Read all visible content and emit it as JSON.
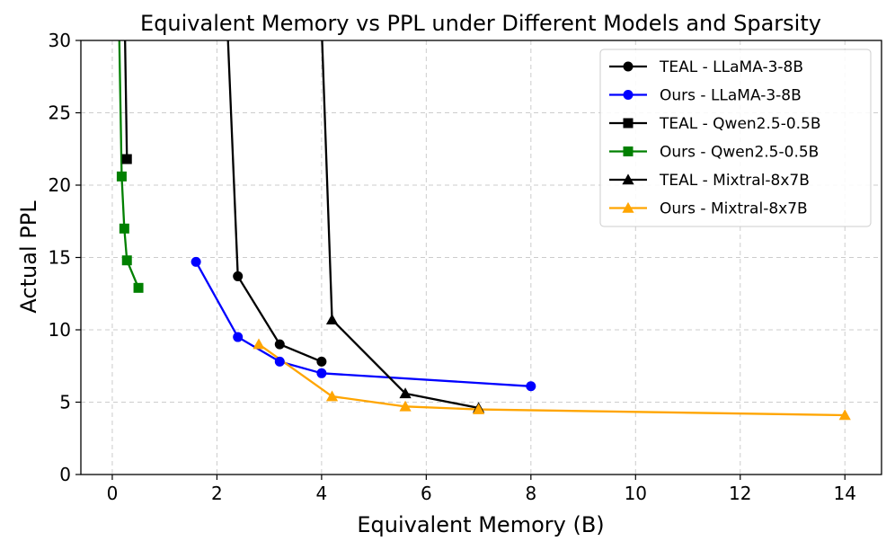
{
  "chart_data": {
    "type": "line",
    "title": "Equivalent Memory vs PPL under Different Models and Sparsity",
    "xlabel": "Equivalent Memory (B)",
    "ylabel": "Actual PPL",
    "xlim": [
      -0.6,
      14.7
    ],
    "ylim": [
      0,
      30
    ],
    "xticks": [
      0,
      2,
      4,
      6,
      8,
      10,
      12,
      14
    ],
    "yticks": [
      0,
      5,
      10,
      15,
      20,
      25,
      30
    ],
    "grid": true,
    "legend_position": "top-right",
    "series": [
      {
        "name": "TEAL - LLaMA-3-8B",
        "color": "#000000",
        "marker": "circle",
        "x": [
          2.2,
          2.4,
          3.2,
          4.0
        ],
        "y": [
          31.0,
          13.7,
          9.0,
          7.8
        ]
      },
      {
        "name": "Ours - LLaMA-3-8B",
        "color": "#0000ff",
        "marker": "circle",
        "x": [
          1.6,
          2.4,
          3.2,
          4.0,
          8.0
        ],
        "y": [
          14.7,
          9.5,
          7.8,
          7.0,
          6.1
        ]
      },
      {
        "name": "TEAL - Qwen2.5-0.5B",
        "color": "#000000",
        "marker": "square",
        "x": [
          0.24,
          0.28
        ],
        "y": [
          31.0,
          21.8
        ]
      },
      {
        "name": "Ours - Qwen2.5-0.5B",
        "color": "#008000",
        "marker": "square",
        "x": [
          0.13,
          0.18,
          0.23,
          0.28,
          0.5
        ],
        "y": [
          31.0,
          20.6,
          17.0,
          14.8,
          12.9
        ]
      },
      {
        "name": "TEAL - Mixtral-8x7B",
        "color": "#000000",
        "marker": "triangle",
        "x": [
          4.0,
          4.2,
          5.6,
          7.0
        ],
        "y": [
          31.0,
          10.7,
          5.6,
          4.6
        ]
      },
      {
        "name": "Ours - Mixtral-8x7B",
        "color": "#ffa500",
        "marker": "triangle",
        "x": [
          2.8,
          4.2,
          5.6,
          7.0,
          14.0
        ],
        "y": [
          9.0,
          5.4,
          4.7,
          4.5,
          4.1
        ]
      }
    ]
  }
}
